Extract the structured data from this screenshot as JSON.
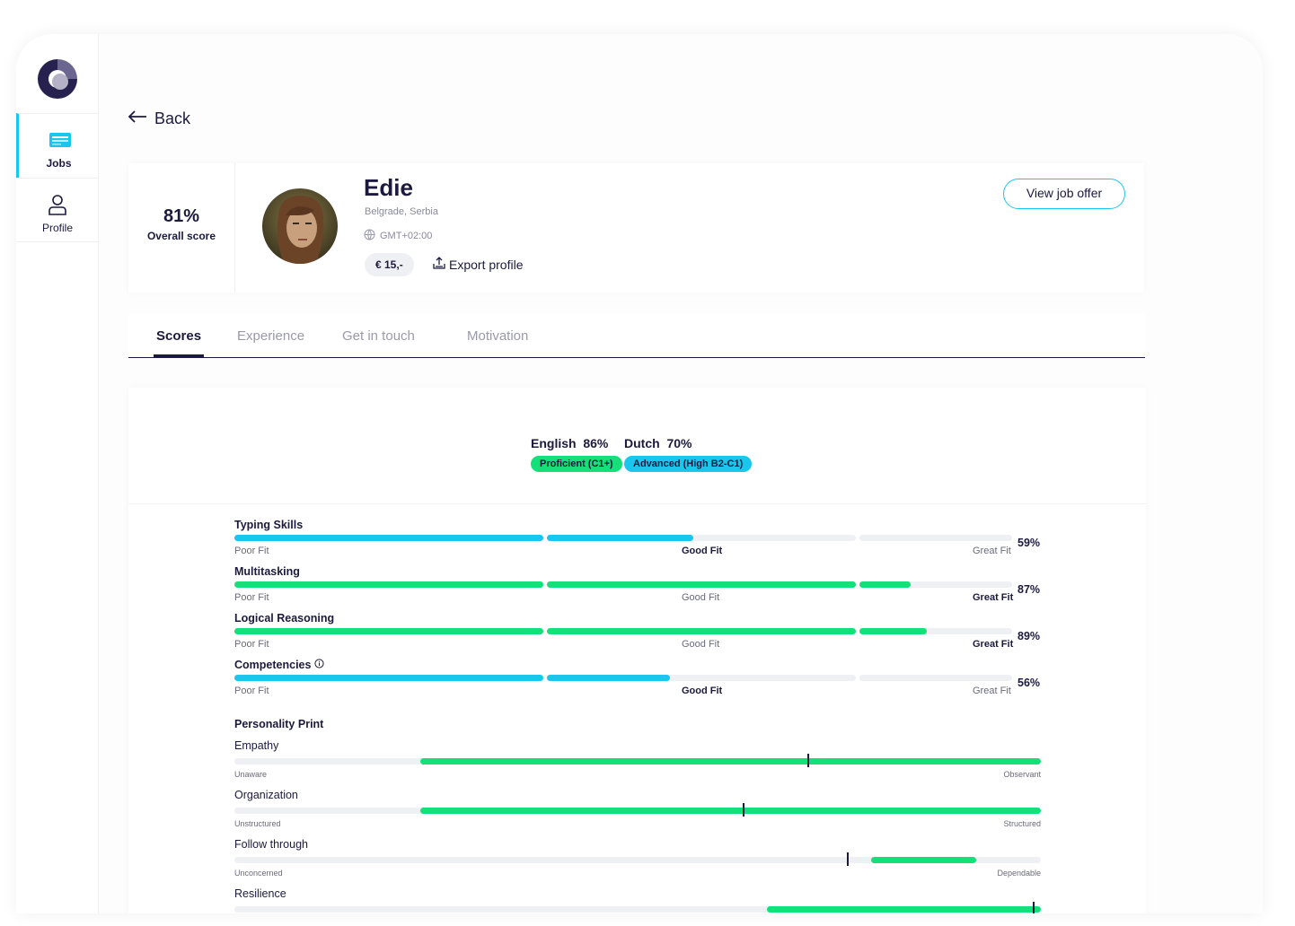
{
  "sidebar": {
    "items": [
      {
        "label": "Jobs",
        "icon": "jobs-icon",
        "active": true
      },
      {
        "label": "Profile",
        "icon": "profile-icon",
        "active": false
      }
    ]
  },
  "back_label": "Back",
  "candidate": {
    "score": "81%",
    "score_label": "Overall score",
    "name": "Edie",
    "location": "Belgrade, Serbia",
    "timezone": "GMT+02:00",
    "price": "€ 15,-",
    "export_label": "Export profile",
    "view_job_label": "View job offer"
  },
  "tabs": [
    {
      "label": "Scores",
      "active": true
    },
    {
      "label": "Experience",
      "active": false
    },
    {
      "label": "Get in touch",
      "active": false
    },
    {
      "label": "Motivation",
      "active": false
    }
  ],
  "languages": [
    {
      "name": "English",
      "score": "86%",
      "level": "Proficient (C1+)",
      "color": "#14e07a"
    },
    {
      "name": "Dutch",
      "score": "70%",
      "level": "Advanced (High B2-C1)",
      "color": "#19c6ee"
    }
  ],
  "skills": [
    {
      "name": "Typing Skills",
      "score": 59,
      "pct_label": "59%",
      "fit": "good",
      "color": "#19c6ee",
      "info": false
    },
    {
      "name": "Multitasking",
      "score": 87,
      "pct_label": "87%",
      "fit": "great",
      "color": "#14e07a",
      "info": false
    },
    {
      "name": "Logical Reasoning",
      "score": 89,
      "pct_label": "89%",
      "fit": "great",
      "color": "#14e07a",
      "info": false
    },
    {
      "name": "Competencies",
      "score": 56,
      "pct_label": "56%",
      "fit": "good",
      "color": "#19c6ee",
      "info": true
    }
  ],
  "fit_labels": {
    "poor": "Poor Fit",
    "good": "Good Fit",
    "great": "Great Fit"
  },
  "personality": {
    "title": "Personality Print",
    "traits": [
      {
        "name": "Empathy",
        "low": "Unaware",
        "high": "Observant",
        "range": [
          0.23,
          1.0
        ],
        "mark": 0.71
      },
      {
        "name": "Organization",
        "low": "Unstructured",
        "high": "Structured",
        "range": [
          0.23,
          1.0
        ],
        "mark": 0.63
      },
      {
        "name": "Follow through",
        "low": "Unconcerned",
        "high": "Dependable",
        "range": [
          0.79,
          0.92
        ],
        "mark": 0.76
      },
      {
        "name": "Resilience",
        "low": "",
        "high": "",
        "range": [
          0.66,
          1.0
        ],
        "mark": 0.99
      }
    ]
  }
}
